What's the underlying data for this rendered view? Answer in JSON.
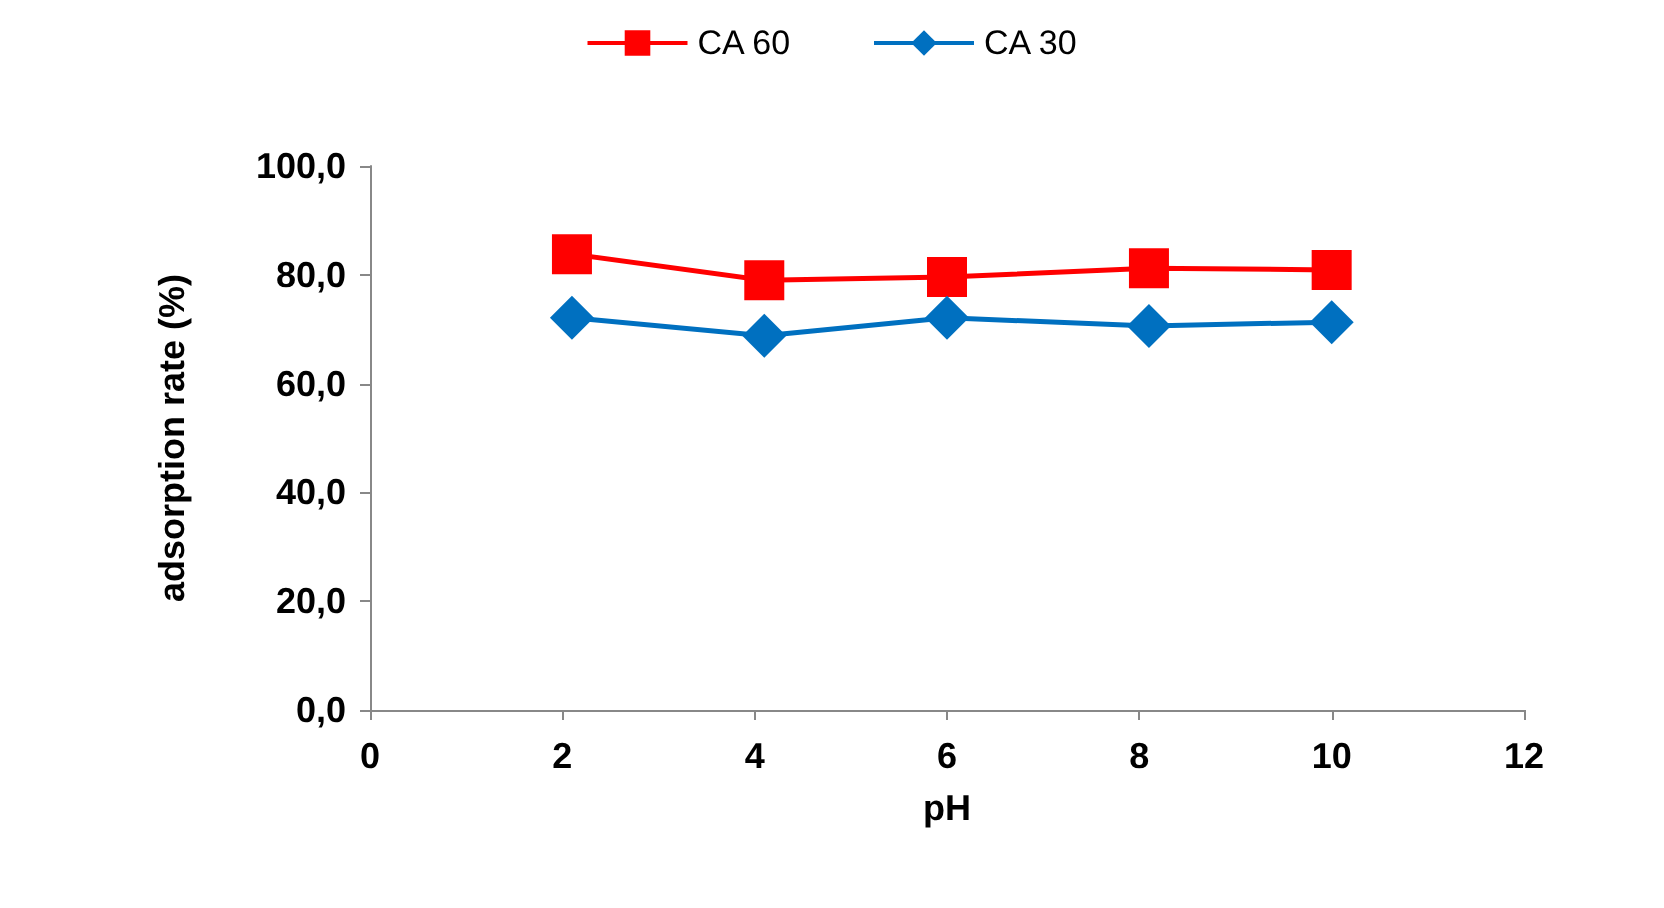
{
  "chart_data": {
    "type": "line",
    "xlabel": "pH",
    "ylabel": "adsorption rate (%)",
    "xlim": [
      0,
      12
    ],
    "xticks": [
      0,
      2,
      4,
      6,
      8,
      10,
      12
    ],
    "ylim": [
      0,
      100
    ],
    "yticks": [
      {
        "value": 0,
        "label": "0,0"
      },
      {
        "value": 20,
        "label": "20,0"
      },
      {
        "value": 40,
        "label": "40,0"
      },
      {
        "value": 60,
        "label": "60,0"
      },
      {
        "value": 80,
        "label": "80,0"
      },
      {
        "value": 100,
        "label": "100,0"
      }
    ],
    "grid": false,
    "legend": "top",
    "series": [
      {
        "name": "CA 60",
        "color": "#ff0000",
        "marker": "square",
        "x": [
          2.1,
          4.1,
          6,
          8.1,
          10
        ],
        "values": [
          83.8,
          79.0,
          79.6,
          81.2,
          80.9
        ]
      },
      {
        "name": "CA 30",
        "color": "#0070c0",
        "marker": "diamond",
        "x": [
          2.1,
          4.1,
          6,
          8.1,
          10
        ],
        "values": [
          72.1,
          68.8,
          72.1,
          70.6,
          71.3
        ]
      }
    ]
  }
}
